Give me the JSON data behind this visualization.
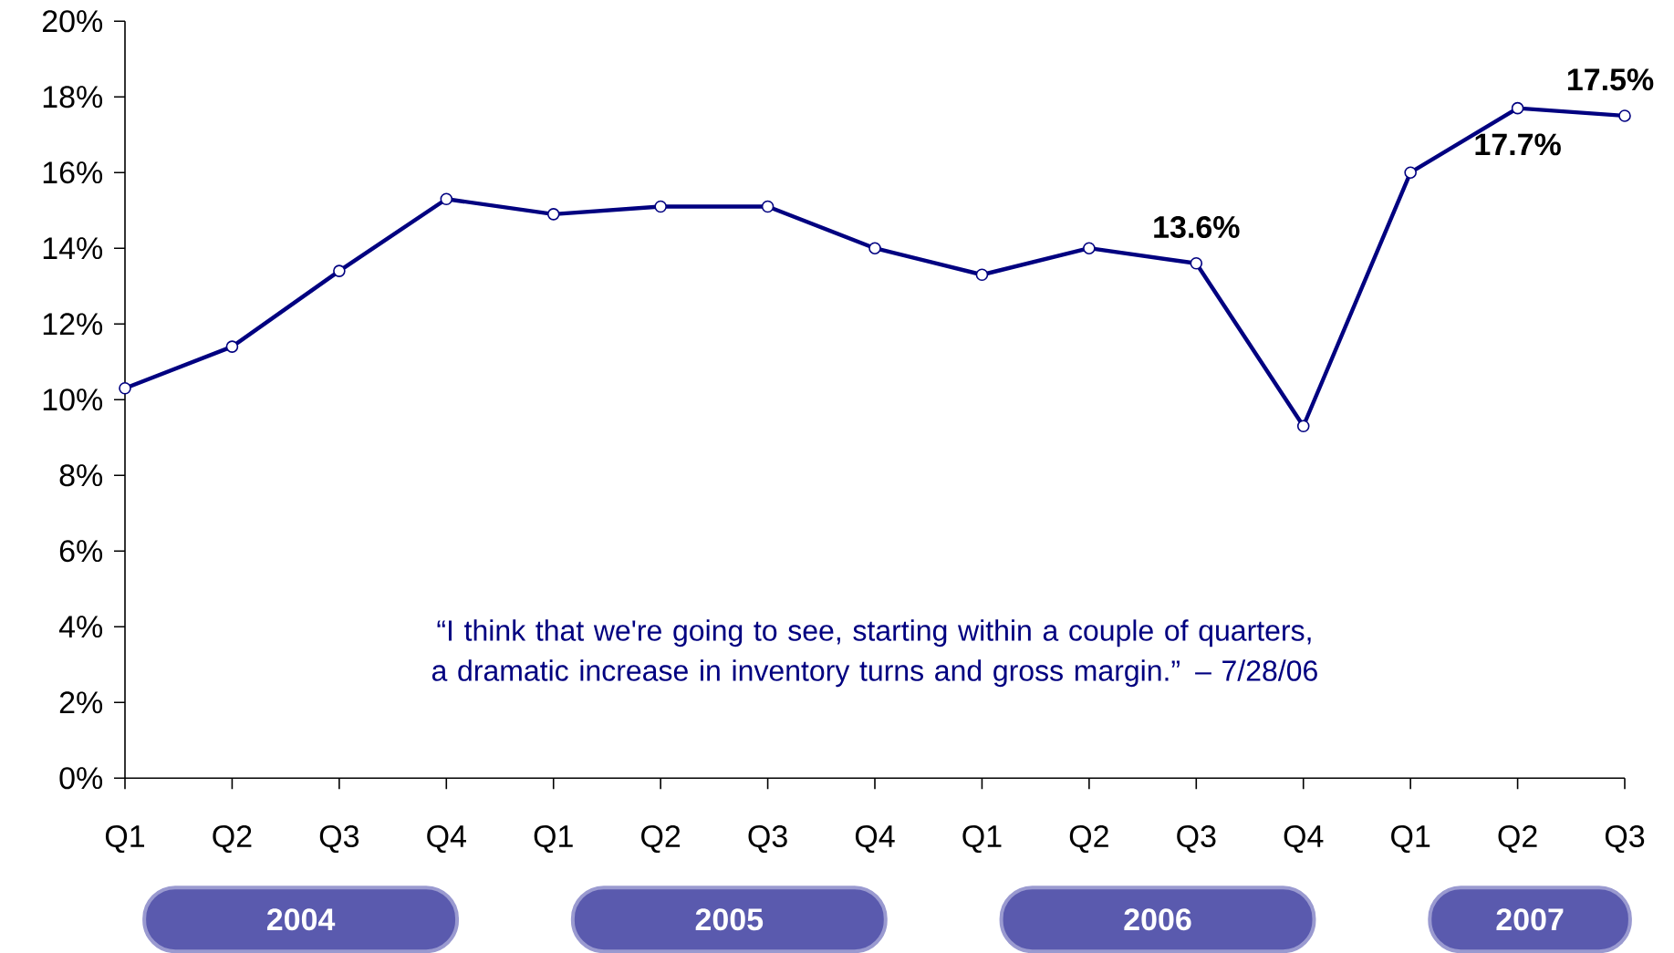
{
  "chart_data": {
    "type": "line",
    "categories": [
      "Q1",
      "Q2",
      "Q3",
      "Q4",
      "Q1",
      "Q2",
      "Q3",
      "Q4",
      "Q1",
      "Q2",
      "Q3",
      "Q4",
      "Q1",
      "Q2",
      "Q3"
    ],
    "series": [
      {
        "color": "#000080",
        "values": [
          10.3,
          11.4,
          13.4,
          15.3,
          14.9,
          15.1,
          15.1,
          14.0,
          13.3,
          14.0,
          13.6,
          9.3,
          16.0,
          17.7,
          17.5
        ],
        "value_labels": [
          null,
          null,
          null,
          null,
          null,
          null,
          null,
          null,
          null,
          null,
          "13.6%",
          null,
          null,
          "17.7%",
          "17.5%"
        ]
      }
    ],
    "ylim": [
      0,
      20
    ],
    "yticks": [
      {
        "value": 0,
        "label": "0%"
      },
      {
        "value": 2,
        "label": "2%"
      },
      {
        "value": 4,
        "label": "4%"
      },
      {
        "value": 6,
        "label": "6%"
      },
      {
        "value": 8,
        "label": "8%"
      },
      {
        "value": 10,
        "label": "10%"
      },
      {
        "value": 12,
        "label": "12%"
      },
      {
        "value": 14,
        "label": "14%"
      },
      {
        "value": 16,
        "label": "16%"
      },
      {
        "value": 18,
        "label": "18%"
      },
      {
        "value": 20,
        "label": "20%"
      }
    ],
    "marker": "circle",
    "grid": false,
    "annotations": [
      "“I think that we're going to see, starting within a couple of quarters, a dramatic increase in inventory turns and gross margin.” – 7/28/06",
      "2004",
      "2005",
      "2006",
      "2007"
    ]
  }
}
